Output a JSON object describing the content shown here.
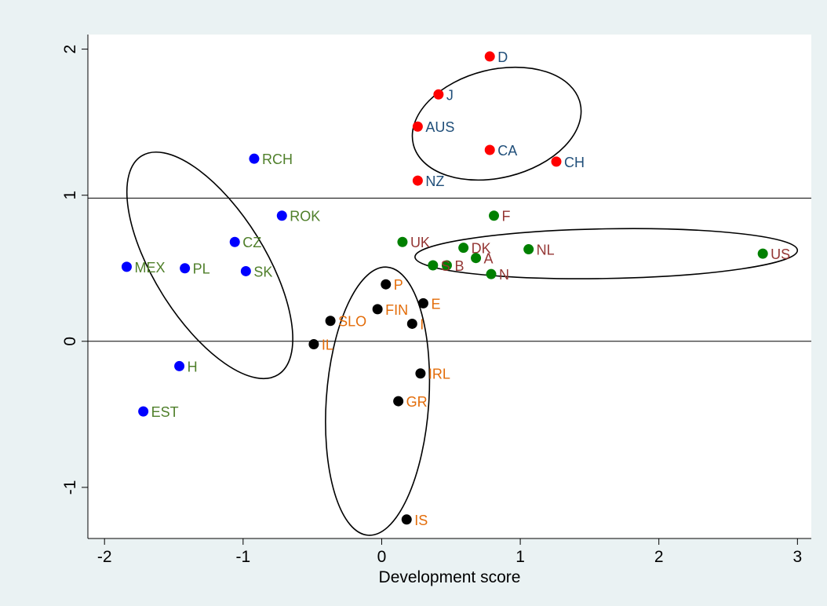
{
  "chart_data": {
    "type": "scatter",
    "title": "",
    "xlabel": "Development score",
    "ylabel": "",
    "xlim": [
      -2.12,
      3.1
    ],
    "ylim": [
      -1.35,
      2.1
    ],
    "xticks": [
      -2,
      -1,
      0,
      1,
      2,
      3
    ],
    "xtick_labels": [
      "-2",
      "-1",
      "0",
      "1",
      "2",
      "3"
    ],
    "yticks": [
      -1,
      0,
      1,
      2
    ],
    "ytick_labels": [
      "-1",
      "0",
      "1",
      "2"
    ],
    "grid": false,
    "legend": "none",
    "reference_lines_y": [
      0.98,
      0
    ],
    "series": [
      {
        "marker_color": "#ff0000",
        "label_color": "#1f4e79",
        "points": [
          {
            "label": "D",
            "x": 0.78,
            "y": 1.95
          },
          {
            "label": "J",
            "x": 0.41,
            "y": 1.69
          },
          {
            "label": "AUS",
            "x": 0.26,
            "y": 1.47
          },
          {
            "label": "CA",
            "x": 0.78,
            "y": 1.31
          },
          {
            "label": "CH",
            "x": 1.26,
            "y": 1.23
          },
          {
            "label": "NZ",
            "x": 0.26,
            "y": 1.1
          }
        ]
      },
      {
        "marker_color": "#0000ff",
        "label_color": "#4f7f2a",
        "points": [
          {
            "label": "RCH",
            "x": -0.92,
            "y": 1.25
          },
          {
            "label": "ROK",
            "x": -0.72,
            "y": 0.86
          },
          {
            "label": "CZ",
            "x": -1.06,
            "y": 0.68
          },
          {
            "label": "MEX",
            "x": -1.84,
            "y": 0.51
          },
          {
            "label": "PL",
            "x": -1.42,
            "y": 0.5
          },
          {
            "label": "SK",
            "x": -0.98,
            "y": 0.48
          },
          {
            "label": "H",
            "x": -1.46,
            "y": -0.17
          },
          {
            "label": "EST",
            "x": -1.72,
            "y": -0.48
          }
        ]
      },
      {
        "marker_color": "#008000",
        "label_color": "#943634",
        "points": [
          {
            "label": "F",
            "x": 0.81,
            "y": 0.86
          },
          {
            "label": "UK",
            "x": 0.15,
            "y": 0.68
          },
          {
            "label": "DK",
            "x": 0.59,
            "y": 0.64
          },
          {
            "label": "NL",
            "x": 1.06,
            "y": 0.63
          },
          {
            "label": "US",
            "x": 2.75,
            "y": 0.6
          },
          {
            "label": "A",
            "x": 0.68,
            "y": 0.57
          },
          {
            "label": "B",
            "x": 0.47,
            "y": 0.52
          },
          {
            "label": "S",
            "x": 0.37,
            "y": 0.52
          },
          {
            "label": "N",
            "x": 0.79,
            "y": 0.46
          }
        ]
      },
      {
        "marker_color": "#000000",
        "label_color": "#e36c09",
        "points": [
          {
            "label": "P",
            "x": 0.03,
            "y": 0.39
          },
          {
            "label": "E",
            "x": 0.3,
            "y": 0.26
          },
          {
            "label": "FIN",
            "x": -0.03,
            "y": 0.22
          },
          {
            "label": "SLO",
            "x": -0.37,
            "y": 0.14
          },
          {
            "label": "I",
            "x": 0.22,
            "y": 0.12
          },
          {
            "label": "IL",
            "x": -0.49,
            "y": -0.02
          },
          {
            "label": "IRL",
            "x": 0.28,
            "y": -0.22
          },
          {
            "label": "GR",
            "x": 0.12,
            "y": -0.41
          },
          {
            "label": "IS",
            "x": 0.18,
            "y": -1.22
          }
        ]
      }
    ],
    "ellipses": [
      {
        "cx": 0.83,
        "cy": 1.49,
        "rx": 0.62,
        "ry": 0.37,
        "angle_deg": -14
      },
      {
        "cx": -1.24,
        "cy": 0.52,
        "rx": 0.93,
        "ry": 0.38,
        "angle_deg": -122
      },
      {
        "cx": 1.62,
        "cy": 0.6,
        "rx": 1.38,
        "ry": 0.17,
        "angle_deg": -1
      },
      {
        "cx": -0.03,
        "cy": -0.41,
        "rx": 0.37,
        "ry": 0.92,
        "angle_deg": 4
      }
    ]
  }
}
